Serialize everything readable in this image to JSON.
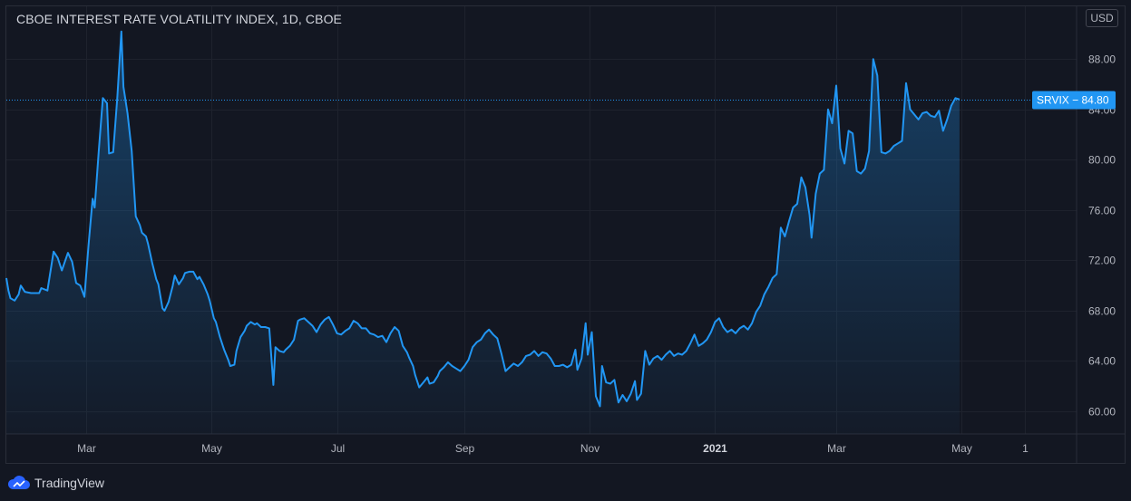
{
  "header": {
    "title": "CBOE INTEREST RATE VOLATILITY INDEX, 1D, CBOE",
    "currency": "USD"
  },
  "footer": {
    "brand": "TradingView"
  },
  "colors": {
    "background": "#131722",
    "line": "#2196f3",
    "grid": "#1e222d",
    "text": "#b2b5be",
    "label_bg": "#2196f3"
  },
  "chart_data": {
    "type": "area",
    "title": "CBOE INTEREST RATE VOLATILITY INDEX, 1D, CBOE",
    "symbol": "SRVIX",
    "last_value": 84.8,
    "last_value_label": "SRVIX − 84.80",
    "ylim": [
      58.2,
      92.2
    ],
    "y_ticks": [
      60,
      64,
      68,
      72,
      76,
      80,
      84,
      88
    ],
    "y_tick_labels": [
      "60.00",
      "64.00",
      "68.00",
      "72.00",
      "76.00",
      "80.00",
      "84.00",
      "88.00"
    ],
    "xlim": [
      "2020-01-22",
      "2021-06-26"
    ],
    "x_ticks": [
      {
        "date": "2020-03-01",
        "label": "Mar"
      },
      {
        "date": "2020-05-01",
        "label": "May"
      },
      {
        "date": "2020-07-01",
        "label": "Jul"
      },
      {
        "date": "2020-09-01",
        "label": "Sep"
      },
      {
        "date": "2020-11-01",
        "label": "Nov"
      },
      {
        "date": "2021-01-01",
        "label": "2021"
      },
      {
        "date": "2021-03-01",
        "label": "Mar"
      },
      {
        "date": "2021-05-01",
        "label": "May"
      },
      {
        "date": "2021-06-01",
        "label": "1"
      }
    ],
    "grid": true,
    "series": [
      {
        "values": [
          [
            "2020-01-22",
            70.6
          ],
          [
            "2020-01-23",
            69.6
          ],
          [
            "2020-01-24",
            69.0
          ],
          [
            "2020-01-26",
            68.8
          ],
          [
            "2020-01-28",
            69.3
          ],
          [
            "2020-01-29",
            70.0
          ],
          [
            "2020-01-31",
            69.5
          ],
          [
            "2020-02-03",
            69.4
          ],
          [
            "2020-02-07",
            69.4
          ],
          [
            "2020-02-08",
            69.8
          ],
          [
            "2020-02-11",
            69.6
          ],
          [
            "2020-02-14",
            72.7
          ],
          [
            "2020-02-16",
            72.2
          ],
          [
            "2020-02-18",
            71.2
          ],
          [
            "2020-02-21",
            72.6
          ],
          [
            "2020-02-23",
            71.9
          ],
          [
            "2020-02-25",
            70.2
          ],
          [
            "2020-02-27",
            70.0
          ],
          [
            "2020-02-29",
            69.1
          ],
          [
            "2020-03-02",
            73.2
          ],
          [
            "2020-03-04",
            76.9
          ],
          [
            "2020-03-05",
            76.2
          ],
          [
            "2020-03-07",
            80.7
          ],
          [
            "2020-03-09",
            84.9
          ],
          [
            "2020-03-11",
            84.5
          ],
          [
            "2020-03-12",
            80.5
          ],
          [
            "2020-03-14",
            80.6
          ],
          [
            "2020-03-16",
            84.9
          ],
          [
            "2020-03-18",
            90.2
          ],
          [
            "2020-03-19",
            85.8
          ],
          [
            "2020-03-21",
            83.7
          ],
          [
            "2020-03-23",
            80.7
          ],
          [
            "2020-03-25",
            75.5
          ],
          [
            "2020-03-27",
            74.8
          ],
          [
            "2020-03-28",
            74.2
          ],
          [
            "2020-03-30",
            73.9
          ],
          [
            "2020-03-31",
            73.3
          ],
          [
            "2020-04-02",
            71.8
          ],
          [
            "2020-04-04",
            70.5
          ],
          [
            "2020-04-05",
            70.1
          ],
          [
            "2020-04-07",
            68.2
          ],
          [
            "2020-04-08",
            68.0
          ],
          [
            "2020-04-10",
            68.7
          ],
          [
            "2020-04-12",
            70.0
          ],
          [
            "2020-04-13",
            70.8
          ],
          [
            "2020-04-15",
            70.1
          ],
          [
            "2020-04-17",
            70.6
          ],
          [
            "2020-04-18",
            71.0
          ],
          [
            "2020-04-20",
            71.1
          ],
          [
            "2020-04-22",
            71.1
          ],
          [
            "2020-04-24",
            70.5
          ],
          [
            "2020-04-25",
            70.7
          ],
          [
            "2020-04-27",
            70.1
          ],
          [
            "2020-04-29",
            69.3
          ],
          [
            "2020-04-30",
            68.8
          ],
          [
            "2020-05-02",
            67.4
          ],
          [
            "2020-05-03",
            67.1
          ],
          [
            "2020-05-05",
            65.9
          ],
          [
            "2020-05-07",
            64.9
          ],
          [
            "2020-05-09",
            64.1
          ],
          [
            "2020-05-10",
            63.6
          ],
          [
            "2020-05-12",
            63.7
          ],
          [
            "2020-05-13",
            64.8
          ],
          [
            "2020-05-15",
            65.9
          ],
          [
            "2020-05-17",
            66.4
          ],
          [
            "2020-05-18",
            66.8
          ],
          [
            "2020-05-20",
            67.1
          ],
          [
            "2020-05-22",
            66.9
          ],
          [
            "2020-05-23",
            67.0
          ],
          [
            "2020-05-25",
            66.7
          ],
          [
            "2020-05-27",
            66.7
          ],
          [
            "2020-05-29",
            66.6
          ],
          [
            "2020-05-31",
            62.1
          ],
          [
            "2020-06-01",
            65.1
          ],
          [
            "2020-06-03",
            64.8
          ],
          [
            "2020-06-05",
            64.7
          ],
          [
            "2020-06-06",
            64.9
          ],
          [
            "2020-06-08",
            65.2
          ],
          [
            "2020-06-10",
            65.7
          ],
          [
            "2020-06-12",
            67.2
          ],
          [
            "2020-06-13",
            67.3
          ],
          [
            "2020-06-15",
            67.4
          ],
          [
            "2020-06-17",
            67.1
          ],
          [
            "2020-06-19",
            66.8
          ],
          [
            "2020-06-21",
            66.3
          ],
          [
            "2020-06-23",
            66.9
          ],
          [
            "2020-06-25",
            67.3
          ],
          [
            "2020-06-27",
            67.5
          ],
          [
            "2020-06-29",
            66.9
          ],
          [
            "2020-07-01",
            66.2
          ],
          [
            "2020-07-03",
            66.1
          ],
          [
            "2020-07-05",
            66.4
          ],
          [
            "2020-07-07",
            66.6
          ],
          [
            "2020-07-09",
            67.2
          ],
          [
            "2020-07-11",
            67.0
          ],
          [
            "2020-07-13",
            66.6
          ],
          [
            "2020-07-15",
            66.6
          ],
          [
            "2020-07-17",
            66.2
          ],
          [
            "2020-07-19",
            66.1
          ],
          [
            "2020-07-21",
            65.9
          ],
          [
            "2020-07-23",
            66.0
          ],
          [
            "2020-07-25",
            65.5
          ],
          [
            "2020-07-27",
            66.2
          ],
          [
            "2020-07-29",
            66.7
          ],
          [
            "2020-07-31",
            66.4
          ],
          [
            "2020-08-02",
            65.2
          ],
          [
            "2020-08-04",
            64.7
          ],
          [
            "2020-08-05",
            64.3
          ],
          [
            "2020-08-07",
            63.6
          ],
          [
            "2020-08-08",
            62.9
          ],
          [
            "2020-08-10",
            61.9
          ],
          [
            "2020-08-12",
            62.3
          ],
          [
            "2020-08-14",
            62.7
          ],
          [
            "2020-08-15",
            62.2
          ],
          [
            "2020-08-17",
            62.3
          ],
          [
            "2020-08-19",
            62.8
          ],
          [
            "2020-08-20",
            63.2
          ],
          [
            "2020-08-22",
            63.5
          ],
          [
            "2020-08-24",
            63.9
          ],
          [
            "2020-08-26",
            63.6
          ],
          [
            "2020-08-28",
            63.4
          ],
          [
            "2020-08-30",
            63.2
          ],
          [
            "2020-09-01",
            63.6
          ],
          [
            "2020-09-03",
            64.1
          ],
          [
            "2020-09-05",
            65.1
          ],
          [
            "2020-09-07",
            65.5
          ],
          [
            "2020-09-09",
            65.7
          ],
          [
            "2020-09-11",
            66.2
          ],
          [
            "2020-09-13",
            66.5
          ],
          [
            "2020-09-15",
            66.1
          ],
          [
            "2020-09-17",
            65.8
          ],
          [
            "2020-09-19",
            64.6
          ],
          [
            "2020-09-21",
            63.2
          ],
          [
            "2020-09-23",
            63.5
          ],
          [
            "2020-09-25",
            63.8
          ],
          [
            "2020-09-27",
            63.6
          ],
          [
            "2020-09-29",
            63.9
          ],
          [
            "2020-10-01",
            64.4
          ],
          [
            "2020-10-03",
            64.5
          ],
          [
            "2020-10-05",
            64.8
          ],
          [
            "2020-10-07",
            64.4
          ],
          [
            "2020-10-09",
            64.7
          ],
          [
            "2020-10-11",
            64.6
          ],
          [
            "2020-10-13",
            64.2
          ],
          [
            "2020-10-15",
            63.6
          ],
          [
            "2020-10-17",
            63.6
          ],
          [
            "2020-10-19",
            63.7
          ],
          [
            "2020-10-21",
            63.5
          ],
          [
            "2020-10-23",
            63.7
          ],
          [
            "2020-10-25",
            64.9
          ],
          [
            "2020-10-26",
            63.3
          ],
          [
            "2020-10-28",
            64.2
          ],
          [
            "2020-10-30",
            67.0
          ],
          [
            "2020-10-31",
            64.5
          ],
          [
            "2020-11-02",
            66.3
          ],
          [
            "2020-11-04",
            61.2
          ],
          [
            "2020-11-06",
            60.4
          ],
          [
            "2020-11-07",
            63.6
          ],
          [
            "2020-11-09",
            62.3
          ],
          [
            "2020-11-11",
            62.2
          ],
          [
            "2020-11-13",
            62.5
          ],
          [
            "2020-11-15",
            60.7
          ],
          [
            "2020-11-17",
            61.3
          ],
          [
            "2020-11-19",
            60.8
          ],
          [
            "2020-11-21",
            61.4
          ],
          [
            "2020-11-23",
            62.4
          ],
          [
            "2020-11-24",
            60.9
          ],
          [
            "2020-11-26",
            61.4
          ],
          [
            "2020-11-28",
            64.8
          ],
          [
            "2020-11-30",
            63.7
          ],
          [
            "2020-12-02",
            64.2
          ],
          [
            "2020-12-04",
            64.4
          ],
          [
            "2020-12-06",
            64.1
          ],
          [
            "2020-12-08",
            64.5
          ],
          [
            "2020-12-10",
            64.8
          ],
          [
            "2020-12-12",
            64.4
          ],
          [
            "2020-12-14",
            64.6
          ],
          [
            "2020-12-16",
            64.5
          ],
          [
            "2020-12-18",
            64.8
          ],
          [
            "2020-12-20",
            65.4
          ],
          [
            "2020-12-22",
            66.1
          ],
          [
            "2020-12-24",
            65.2
          ],
          [
            "2020-12-26",
            65.4
          ],
          [
            "2020-12-28",
            65.7
          ],
          [
            "2020-12-30",
            66.3
          ],
          [
            "2021-01-01",
            67.1
          ],
          [
            "2021-01-03",
            67.4
          ],
          [
            "2021-01-05",
            66.7
          ],
          [
            "2021-01-07",
            66.3
          ],
          [
            "2021-01-09",
            66.5
          ],
          [
            "2021-01-11",
            66.2
          ],
          [
            "2021-01-13",
            66.6
          ],
          [
            "2021-01-15",
            66.8
          ],
          [
            "2021-01-17",
            66.5
          ],
          [
            "2021-01-19",
            67.0
          ],
          [
            "2021-01-21",
            67.9
          ],
          [
            "2021-01-23",
            68.4
          ],
          [
            "2021-01-25",
            69.3
          ],
          [
            "2021-01-27",
            69.9
          ],
          [
            "2021-01-29",
            70.6
          ],
          [
            "2021-01-31",
            70.9
          ],
          [
            "2021-02-02",
            74.6
          ],
          [
            "2021-02-04",
            73.9
          ],
          [
            "2021-02-06",
            75.1
          ],
          [
            "2021-02-08",
            76.2
          ],
          [
            "2021-02-10",
            76.5
          ],
          [
            "2021-02-12",
            78.6
          ],
          [
            "2021-02-14",
            77.8
          ],
          [
            "2021-02-16",
            75.6
          ],
          [
            "2021-02-17",
            73.8
          ],
          [
            "2021-02-19",
            77.3
          ],
          [
            "2021-02-21",
            78.9
          ],
          [
            "2021-02-23",
            79.2
          ],
          [
            "2021-02-25",
            84.0
          ],
          [
            "2021-02-27",
            82.9
          ],
          [
            "2021-03-01",
            85.9
          ],
          [
            "2021-03-03",
            80.9
          ],
          [
            "2021-03-05",
            79.7
          ],
          [
            "2021-03-07",
            82.3
          ],
          [
            "2021-03-09",
            82.1
          ],
          [
            "2021-03-11",
            79.1
          ],
          [
            "2021-03-13",
            78.9
          ],
          [
            "2021-03-15",
            79.3
          ],
          [
            "2021-03-17",
            80.7
          ],
          [
            "2021-03-19",
            88.0
          ],
          [
            "2021-03-21",
            86.7
          ],
          [
            "2021-03-23",
            80.6
          ],
          [
            "2021-03-25",
            80.5
          ],
          [
            "2021-03-27",
            80.7
          ],
          [
            "2021-03-29",
            81.1
          ],
          [
            "2021-03-31",
            81.3
          ],
          [
            "2021-04-02",
            81.5
          ],
          [
            "2021-04-04",
            86.1
          ],
          [
            "2021-04-06",
            84.0
          ],
          [
            "2021-04-08",
            83.6
          ],
          [
            "2021-04-10",
            83.2
          ],
          [
            "2021-04-12",
            83.7
          ],
          [
            "2021-04-14",
            83.8
          ],
          [
            "2021-04-16",
            83.5
          ],
          [
            "2021-04-18",
            83.4
          ],
          [
            "2021-04-20",
            83.9
          ],
          [
            "2021-04-22",
            82.3
          ],
          [
            "2021-04-24",
            83.2
          ],
          [
            "2021-04-26",
            84.3
          ],
          [
            "2021-04-28",
            84.9
          ],
          [
            "2021-04-30",
            84.8
          ]
        ]
      }
    ]
  }
}
